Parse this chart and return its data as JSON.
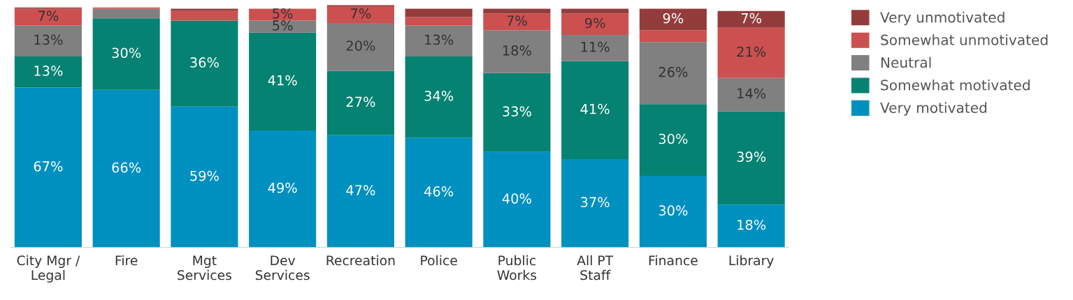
{
  "chart_data": {
    "type": "bar",
    "stacked": true,
    "legend": "right",
    "categories": [
      "City Mgr /\nLegal",
      "Fire",
      "Mgt\nServices",
      "Dev\nServices",
      "Recreation",
      "Police",
      "Public\nWorks",
      "All PT\nStaff",
      "Finance",
      "Library"
    ],
    "series": [
      {
        "name": "Very motivated",
        "color": "#0090c0",
        "values": [
          67,
          66,
          59,
          49,
          47,
          46,
          40,
          37,
          30,
          18
        ],
        "value_labels": [
          "67%",
          "66%",
          "59%",
          "49%",
          "47%",
          "46%",
          "40%",
          "37%",
          "30%",
          "18%"
        ]
      },
      {
        "name": "Somewhat motivated",
        "color": "#058272",
        "values": [
          13,
          30,
          36,
          41,
          27,
          34,
          33,
          41,
          30,
          39
        ],
        "value_labels": [
          "13%",
          "30%",
          "36%",
          "41%",
          "27%",
          "34%",
          "33%",
          "41%",
          "30%",
          "39%"
        ]
      },
      {
        "name": "Neutral",
        "color": "#808080",
        "values": [
          13,
          4,
          0,
          5,
          20,
          13,
          18,
          11,
          26,
          14
        ],
        "value_labels": [
          "13%",
          null,
          null,
          "5%",
          "20%",
          "13%",
          "18%",
          "11%",
          "26%",
          "14%"
        ]
      },
      {
        "name": "Somewhat unmotivated",
        "color": "#cc5050",
        "values": [
          7,
          0.5,
          4,
          5,
          7,
          3.5,
          7,
          9,
          5,
          21
        ],
        "value_labels": [
          "7%",
          null,
          null,
          "5%",
          "7%",
          null,
          "7%",
          "9%",
          null,
          "21%"
        ]
      },
      {
        "name": "Very unmotivated",
        "color": "#943c3c",
        "values": [
          0.5,
          0,
          1,
          0,
          0.5,
          3.5,
          2,
          2,
          9,
          7
        ],
        "value_labels": [
          null,
          null,
          null,
          null,
          null,
          null,
          null,
          null,
          "9%",
          "7%"
        ]
      }
    ]
  }
}
